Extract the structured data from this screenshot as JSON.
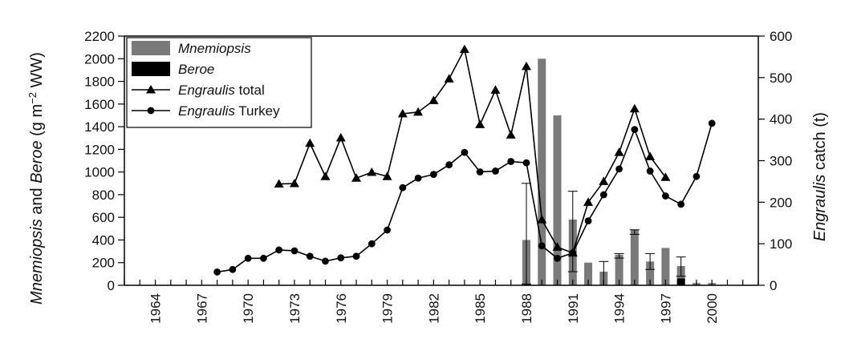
{
  "chart_data": {
    "type": "bar",
    "y_left": {
      "label_parts": [
        "Mnemiopsis",
        " and ",
        "Beroe",
        " (g m",
        "−2",
        " WW)"
      ],
      "ylim": [
        0,
        2200
      ],
      "ticks": [
        0,
        200,
        400,
        600,
        800,
        1000,
        1200,
        1400,
        1600,
        1800,
        2000,
        2200
      ]
    },
    "y_right": {
      "label_parts": [
        "Engraulis",
        " catch (t)"
      ],
      "ylim": [
        0,
        600
      ],
      "ticks": [
        0,
        100,
        200,
        300,
        400,
        500,
        600
      ]
    },
    "x": {
      "xlim": [
        1962,
        2003
      ],
      "ticks": [
        1964,
        1967,
        1970,
        1973,
        1976,
        1979,
        1982,
        1985,
        1988,
        1991,
        1994,
        1997,
        2000
      ]
    },
    "legend": {
      "placement": "top-left",
      "entries": [
        {
          "name": "Mnemiopsis",
          "style": "gray-bar",
          "italic": true
        },
        {
          "name": "Beroe",
          "style": "black-bar",
          "italic": true
        },
        {
          "name_parts": [
            "Engraulis",
            " total"
          ],
          "style": "line-triangle"
        },
        {
          "name_parts": [
            "Engraulis",
            " Turkey"
          ],
          "style": "line-circle"
        }
      ]
    },
    "series": [
      {
        "name": "Mnemiopsis",
        "axis": "left",
        "type": "bar",
        "color": "#7a7a7a",
        "data": [
          {
            "x": 1988,
            "y": 400,
            "err_low": 10,
            "err_high": 900
          },
          {
            "x": 1989,
            "y": 2000
          },
          {
            "x": 1990,
            "y": 1500
          },
          {
            "x": 1991,
            "y": 580,
            "err_low": 120,
            "err_high": 830
          },
          {
            "x": 1992,
            "y": 200
          },
          {
            "x": 1993,
            "y": 120,
            "err_low": 0,
            "err_high": 210
          },
          {
            "x": 1994,
            "y": 270,
            "err_low": 240,
            "err_high": 280
          },
          {
            "x": 1995,
            "y": 490,
            "err_low": 450,
            "err_high": 490
          },
          {
            "x": 1996,
            "y": 210,
            "err_low": 140,
            "err_high": 280
          },
          {
            "x": 1997,
            "y": 330
          },
          {
            "x": 1998,
            "y": 170,
            "err_low": 80,
            "err_high": 250
          },
          {
            "x": 1999,
            "y": 20
          },
          {
            "x": 2000,
            "y": 20
          }
        ]
      },
      {
        "name": "Beroe",
        "axis": "left",
        "type": "bar",
        "color": "#000000",
        "data": [
          {
            "x": 1998,
            "y": 60
          }
        ]
      },
      {
        "name": "Engraulis total",
        "axis": "right",
        "type": "line",
        "marker": "triangle",
        "segments": [
          [
            [
              1972,
              244
            ],
            [
              1973,
              245
            ],
            [
              1974,
              342
            ],
            [
              1975,
              262
            ],
            [
              1976,
              355
            ],
            [
              1977,
              258
            ],
            [
              1978,
              272
            ],
            [
              1979,
              262
            ],
            [
              1980,
              413
            ],
            [
              1981,
              417
            ],
            [
              1982,
              445
            ],
            [
              1983,
              497
            ],
            [
              1984,
              568
            ],
            [
              1985,
              387
            ],
            [
              1986,
              470
            ],
            [
              1987,
              362
            ],
            [
              1988,
              527
            ],
            [
              1989,
              158
            ],
            [
              1990,
              92
            ],
            [
              1991,
              78
            ],
            [
              1992,
              200
            ],
            [
              1993,
              250
            ],
            [
              1994,
              320
            ],
            [
              1995,
              425
            ],
            [
              1996,
              310
            ],
            [
              1997,
              260
            ]
          ]
        ]
      },
      {
        "name": "Engraulis Turkey",
        "axis": "right",
        "type": "line",
        "marker": "circle",
        "segments": [
          [
            [
              1968,
              32
            ],
            [
              1969,
              38
            ],
            [
              1970,
              65
            ],
            [
              1971,
              65
            ],
            [
              1972,
              85
            ],
            [
              1973,
              83
            ],
            [
              1974,
              70
            ],
            [
              1975,
              58
            ],
            [
              1976,
              66
            ],
            [
              1977,
              70
            ],
            [
              1978,
              100
            ],
            [
              1979,
              133
            ],
            [
              1980,
              235
            ],
            [
              1981,
              258
            ],
            [
              1982,
              267
            ],
            [
              1983,
              290
            ],
            [
              1984,
              320
            ],
            [
              1985,
              273
            ],
            [
              1986,
              275
            ],
            [
              1987,
              298
            ],
            [
              1988,
              295
            ],
            [
              1989,
              95
            ],
            [
              1990,
              65
            ],
            [
              1991,
              78
            ],
            [
              1992,
              155
            ],
            [
              1993,
              218
            ],
            [
              1994,
              280
            ],
            [
              1995,
              375
            ],
            [
              1996,
              275
            ],
            [
              1997,
              215
            ],
            [
              1998,
              195
            ],
            [
              1999,
              262
            ],
            [
              2000,
              390
            ]
          ]
        ]
      }
    ]
  }
}
